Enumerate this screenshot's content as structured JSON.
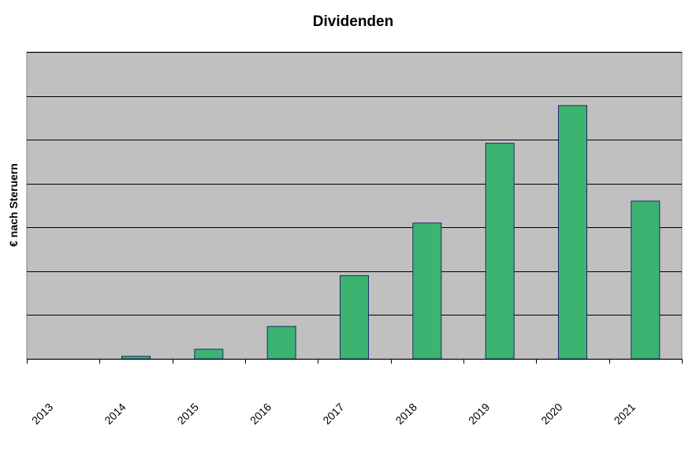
{
  "chart_data": {
    "type": "bar",
    "title": "Dividenden",
    "xlabel": "",
    "ylabel": "€ nach Steruern",
    "categories": [
      "2013",
      "2014",
      "2015",
      "2016",
      "2017",
      "2018",
      "2019",
      "2020",
      "2021"
    ],
    "series": [
      {
        "values": [
          0,
          0.06,
          0.22,
          0.74,
          1.9,
          3.1,
          4.92,
          5.78,
          3.6
        ]
      }
    ],
    "ylim": [
      0,
      7
    ],
    "y_gridlines": [
      1,
      2,
      3,
      4,
      5,
      6,
      7
    ],
    "y_tick_labels_shown": false,
    "grid": true,
    "legend": "none",
    "colors": {
      "plot_background": "#c0c0c0",
      "bar_fill": "#3cb371",
      "bar_stroke": "#1a2a6c",
      "gridline": "#000000",
      "axis": "#000000"
    }
  }
}
